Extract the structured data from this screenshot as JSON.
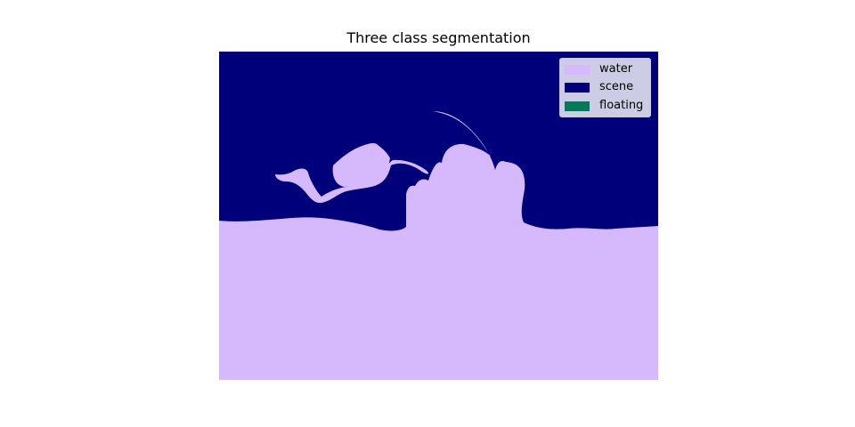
{
  "figure": {
    "title": "Three class segmentation"
  },
  "legend": {
    "items": [
      {
        "label": "water",
        "color": "#d6b9fd"
      },
      {
        "label": "scene",
        "color": "#01007b"
      },
      {
        "label": "floating",
        "color": "#007b5a"
      }
    ]
  },
  "colors": {
    "water": "#d6b9fd",
    "scene": "#01007b",
    "floating": "#007b5a"
  }
}
